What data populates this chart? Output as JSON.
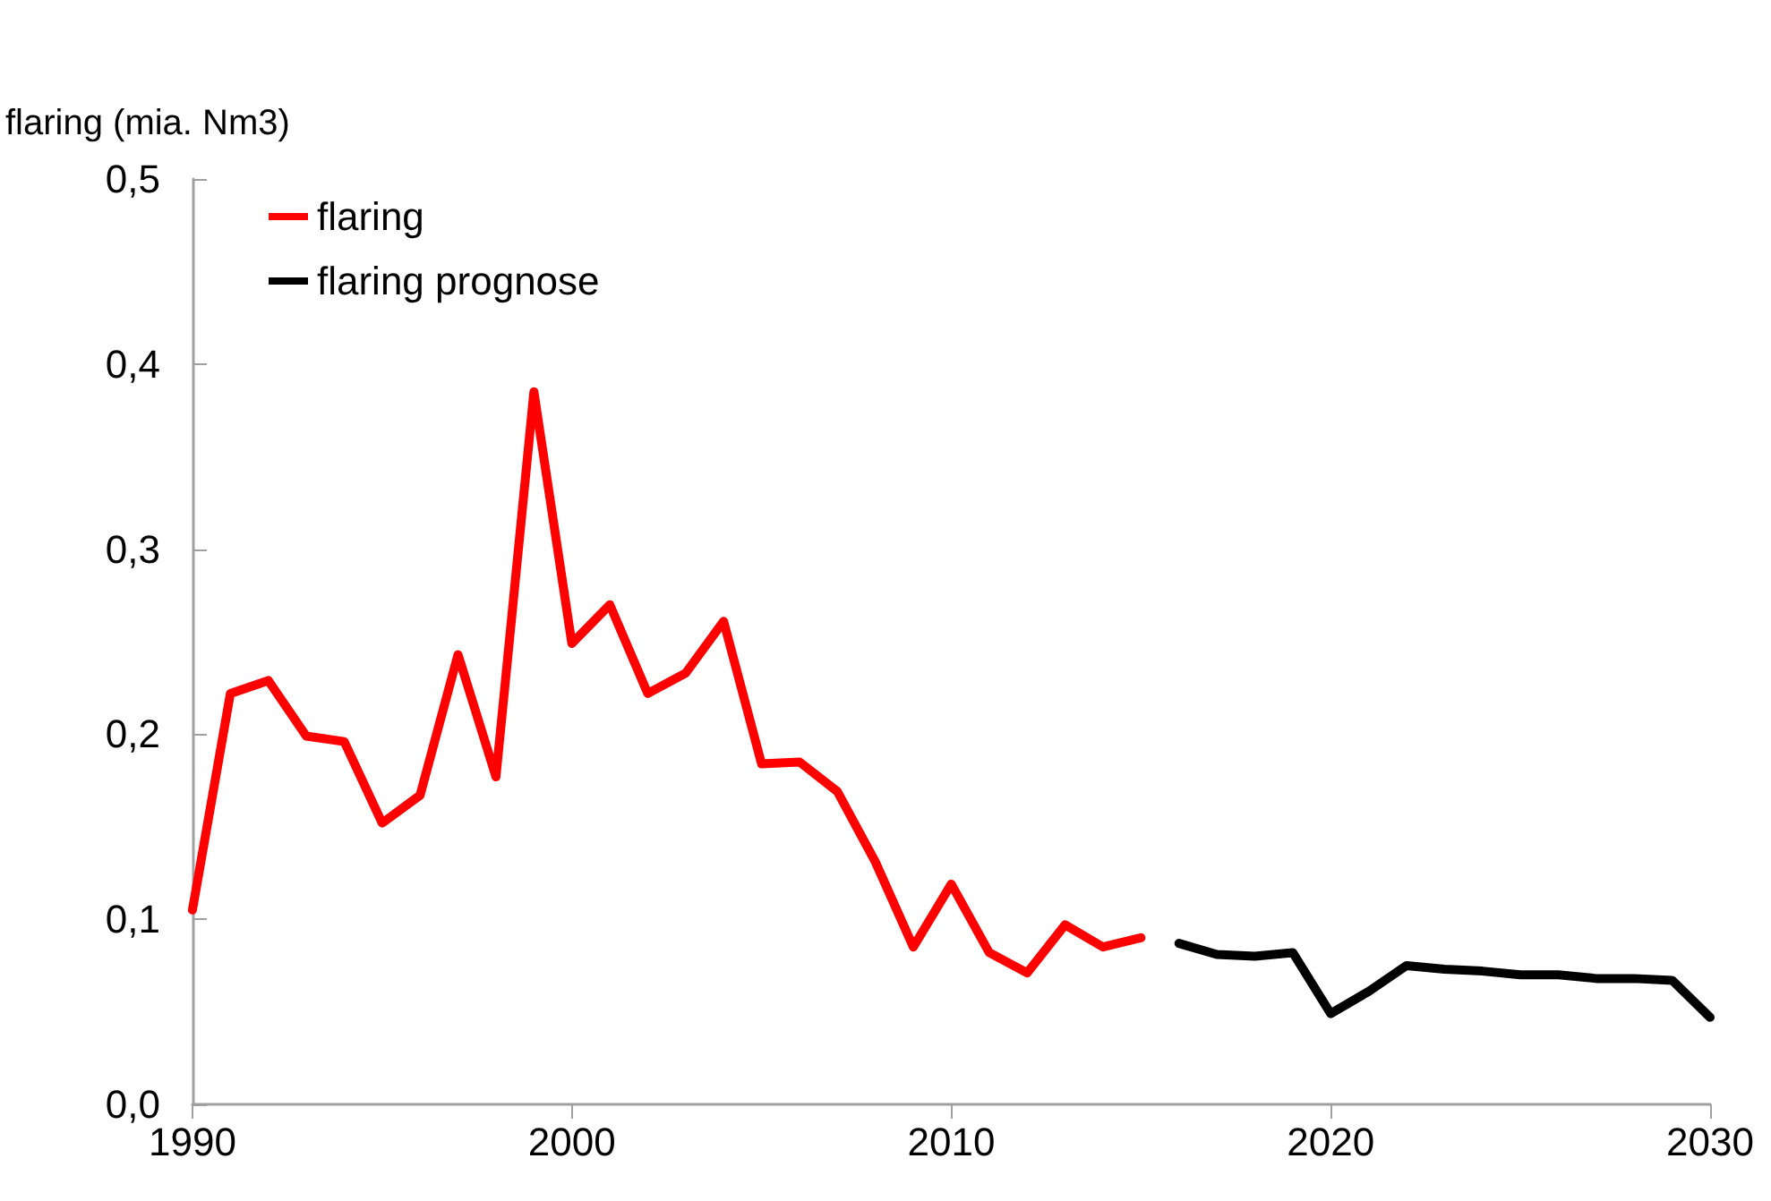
{
  "chart_data": {
    "type": "line",
    "ylabel": "flaring (mia. Nm3)",
    "xlim": [
      1990,
      2030
    ],
    "xticks": [
      1990,
      2000,
      2010,
      2020,
      2030
    ],
    "ylim": [
      0,
      0.5
    ],
    "yticks": [
      {
        "value": 0,
        "label": "0,0"
      },
      {
        "value": 0.1,
        "label": "0,1"
      },
      {
        "value": 0.2,
        "label": "0,2"
      },
      {
        "value": 0.3,
        "label": "0,3"
      },
      {
        "value": 0.4,
        "label": "0,4"
      },
      {
        "value": 0.5,
        "label": "0,5"
      }
    ],
    "grid": false,
    "legend": "top left",
    "marker": "none",
    "line_style": "solid",
    "series": [
      {
        "name": "flaring",
        "color": "#ff0000",
        "x": [
          1990,
          1991,
          1992,
          1993,
          1994,
          1995,
          1996,
          1997,
          1998,
          1999,
          2000,
          2001,
          2002,
          2003,
          2004,
          2005,
          2006,
          2007,
          2008,
          2009,
          2010,
          2011,
          2012,
          2013,
          2014,
          2015
        ],
        "values": [
          0.105,
          0.222,
          0.229,
          0.199,
          0.196,
          0.152,
          0.167,
          0.243,
          0.177,
          0.385,
          0.249,
          0.27,
          0.222,
          0.233,
          0.261,
          0.184,
          0.185,
          0.169,
          0.131,
          0.085,
          0.119,
          0.082,
          0.071,
          0.097,
          0.085,
          0.09
        ]
      },
      {
        "name": "flaring prognose",
        "color": "#000000",
        "x": [
          2016,
          2017,
          2018,
          2019,
          2020,
          2021,
          2022,
          2023,
          2024,
          2025,
          2026,
          2027,
          2028,
          2029,
          2030
        ],
        "values": [
          0.087,
          0.081,
          0.08,
          0.082,
          0.049,
          0.061,
          0.075,
          0.073,
          0.072,
          0.07,
          0.07,
          0.068,
          0.068,
          0.067,
          0.047
        ]
      }
    ]
  }
}
